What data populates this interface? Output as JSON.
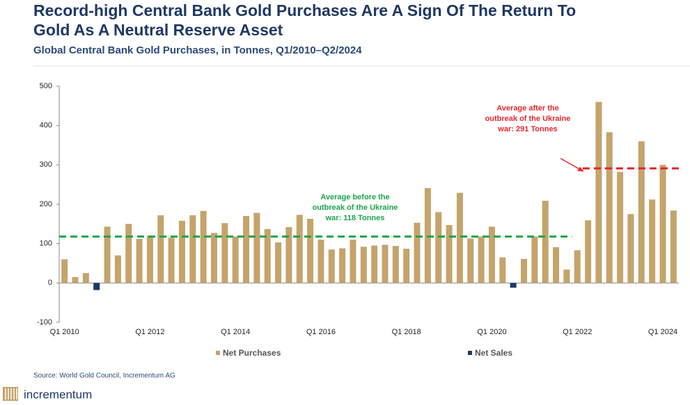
{
  "chart_data": {
    "type": "bar",
    "title": [
      "Record-high Central Bank Gold Purchases Are A Sign Of The Return To",
      "Gold As A Neutral Reserve Asset"
    ],
    "subtitle": "Global Central Bank Gold Purchases, in Tonnes, Q1/2010–Q2/2024",
    "categories": [
      "Q1 2010",
      null,
      null,
      null,
      null,
      null,
      null,
      null,
      "Q1 2012",
      null,
      null,
      null,
      null,
      null,
      null,
      null,
      "Q1 2014",
      null,
      null,
      null,
      null,
      null,
      null,
      null,
      "Q1 2016",
      null,
      null,
      null,
      null,
      null,
      null,
      null,
      "Q1 2018",
      null,
      null,
      null,
      null,
      null,
      null,
      null,
      "Q1 2020",
      null,
      null,
      null,
      null,
      null,
      null,
      null,
      "Q1 2022",
      null,
      null,
      null,
      null,
      null,
      null,
      null,
      "Q1 2024",
      null
    ],
    "series": [
      {
        "name": "Net Purchases",
        "color": "#c4a46b",
        "values": [
          60,
          15,
          25,
          null,
          143,
          70,
          150,
          112,
          120,
          172,
          115,
          158,
          172,
          183,
          127,
          152,
          118,
          170,
          178,
          137,
          103,
          142,
          173,
          163,
          110,
          85,
          88,
          110,
          92,
          95,
          97,
          94,
          87,
          153,
          241,
          180,
          147,
          229,
          113,
          118,
          143,
          65,
          null,
          61,
          118,
          209,
          91,
          34,
          83,
          159,
          460,
          383,
          282,
          175,
          360,
          212,
          300,
          184
        ]
      },
      {
        "name": "Net Sales",
        "color": "#1f3864",
        "values": [
          null,
          null,
          null,
          -18,
          null,
          null,
          null,
          null,
          null,
          null,
          null,
          null,
          null,
          null,
          null,
          null,
          null,
          null,
          null,
          null,
          null,
          null,
          null,
          null,
          null,
          null,
          null,
          null,
          null,
          null,
          null,
          null,
          null,
          null,
          null,
          null,
          null,
          null,
          null,
          null,
          null,
          null,
          -12,
          null,
          null,
          null,
          null,
          null,
          null,
          null,
          null,
          null,
          null,
          null,
          null,
          null,
          null,
          null
        ]
      }
    ],
    "ylim": [
      -100,
      500
    ],
    "yticks": [
      -100,
      0,
      100,
      200,
      300,
      400,
      500
    ],
    "reference_lines": [
      {
        "value": 118,
        "color": "#1aa64a",
        "start": 0,
        "end": 47,
        "label": [
          "Average before the",
          "outbreak of the Ukraine",
          "war: 118 Tonnes"
        ]
      },
      {
        "value": 291,
        "color": "#e8262b",
        "start": 49,
        "end": 57,
        "label": [
          "Average after the",
          "outbreak of the Ukraine",
          "war: 291 Tonnes"
        ]
      }
    ],
    "source": "Source: World Gold Council, Incrementum AG",
    "brand": "incrementum"
  }
}
